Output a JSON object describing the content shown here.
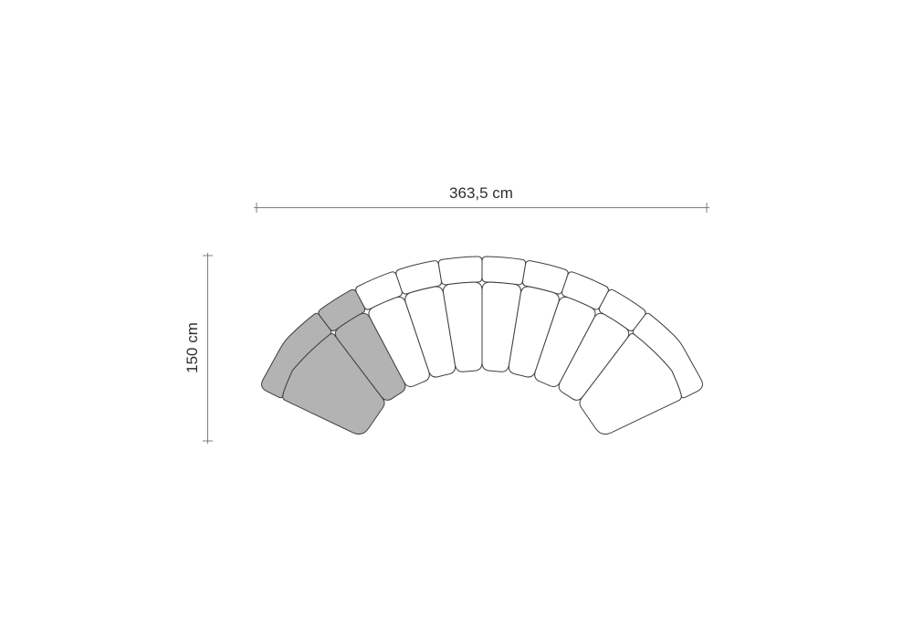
{
  "page": {
    "background": "#ffffff"
  },
  "diagram": {
    "dimensions": {
      "width": {
        "label": "363,5 cm"
      },
      "depth": {
        "label": "150 cm"
      }
    },
    "sofa": {
      "modules_total": 10,
      "highlighted_modules": 2,
      "colors": {
        "highlight_fill": "#b3b3b3",
        "module_fill": "#ffffff",
        "outline": "#3f3f3f",
        "dimension_line": "#7d7d7d",
        "dimension_text": "#2f2f2f"
      }
    }
  }
}
